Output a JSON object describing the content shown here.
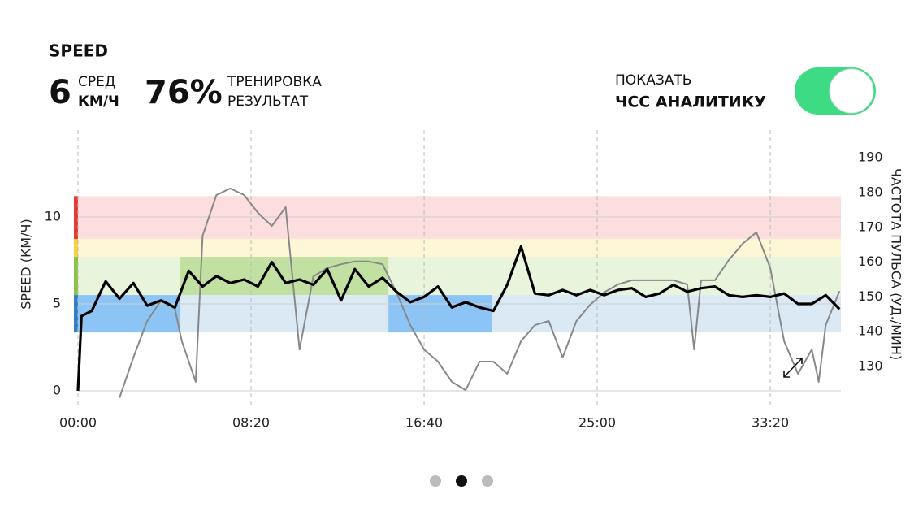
{
  "header": {
    "metric": "SPEED",
    "avg_value": "6",
    "avg_label": "СРЕД",
    "avg_unit": "КМ/Ч",
    "score_value": "76%",
    "score_label_1": "ТРЕНИРОВКА",
    "score_label_2": "РЕЗУЛЬТАТ",
    "toggle_label_1": "ПОКАЗАТЬ",
    "toggle_label_2": "ЧСС АНАЛИТИКУ"
  },
  "chart_data": {
    "type": "line",
    "y_label": "SPEED (КМ/Ч)",
    "y2_label": "ЧАСТОТА ПУЛЬСА (УД./МИН)",
    "xlim": [
      0,
      2204
    ],
    "xticks": [
      {
        "value": 0,
        "label": "00:00"
      },
      {
        "value": 500,
        "label": "08:20"
      },
      {
        "value": 1000,
        "label": "16:40"
      },
      {
        "value": 1500,
        "label": "25:00"
      },
      {
        "value": 2000,
        "label": "33:20"
      }
    ],
    "ylim": [
      0,
      15
    ],
    "yticks": [
      0,
      5,
      10
    ],
    "y2lim": [
      123,
      198
    ],
    "y2ticks": [
      130,
      140,
      150,
      160,
      170,
      180,
      190
    ],
    "zones": [
      {
        "from": 8.74,
        "to": 11.2,
        "color": "#fddede",
        "strip": "#e53935"
      },
      {
        "from": 7.71,
        "to": 8.74,
        "color": "#fdf7d8",
        "strip": "#f5d33a"
      },
      {
        "from": 5.51,
        "to": 7.71,
        "color": "#e9f4dd",
        "strip": "#8bc34a"
      },
      {
        "from": 3.36,
        "to": 5.51,
        "color": "#dbe9f5",
        "strip": "#2f80c8"
      }
    ],
    "highlights": [
      {
        "zone": 3,
        "start": 0,
        "end": 296,
        "color": "#8cc4f5"
      },
      {
        "zone": 2,
        "start": 296,
        "end": 897,
        "color": "#c2e0a2"
      },
      {
        "zone": 3,
        "start": 897,
        "end": 1195,
        "color": "#8cc4f5"
      }
    ],
    "speed": {
      "color": "#000000",
      "x": [
        0,
        10,
        40,
        80,
        120,
        160,
        200,
        240,
        280,
        320,
        360,
        400,
        440,
        480,
        520,
        560,
        600,
        640,
        680,
        720,
        760,
        800,
        840,
        880,
        920,
        960,
        1000,
        1040,
        1080,
        1120,
        1160,
        1200,
        1240,
        1280,
        1320,
        1360,
        1400,
        1440,
        1480,
        1520,
        1560,
        1600,
        1640,
        1680,
        1720,
        1760,
        1800,
        1840,
        1880,
        1920,
        1960,
        2000,
        2040,
        2080,
        2120,
        2160,
        2200
      ],
      "values": [
        0,
        4.3,
        4.6,
        6.3,
        5.3,
        6.2,
        4.9,
        5.2,
        4.8,
        6.9,
        6.0,
        6.6,
        6.2,
        6.4,
        6.0,
        7.4,
        6.2,
        6.4,
        6.1,
        7.0,
        5.2,
        7.0,
        6.0,
        6.5,
        5.7,
        5.1,
        5.4,
        6.0,
        4.8,
        5.1,
        4.8,
        4.6,
        6.1,
        8.3,
        5.6,
        5.5,
        5.8,
        5.5,
        5.8,
        5.5,
        5.8,
        5.9,
        5.4,
        5.6,
        6.1,
        5.7,
        5.9,
        6.0,
        5.5,
        5.4,
        5.5,
        5.4,
        5.6,
        5.0,
        5.0,
        5.5,
        4.7
      ]
    },
    "heart_rate": {
      "axis": "y2",
      "color": "#888888",
      "x": [
        120,
        160,
        200,
        240,
        280,
        300,
        340,
        360,
        400,
        440,
        480,
        520,
        560,
        600,
        640,
        680,
        720,
        760,
        800,
        840,
        880,
        920,
        960,
        1000,
        1040,
        1080,
        1120,
        1160,
        1200,
        1240,
        1280,
        1320,
        1360,
        1400,
        1440,
        1480,
        1520,
        1560,
        1600,
        1640,
        1680,
        1720,
        1760,
        1780,
        1800,
        1840,
        1880,
        1920,
        1960,
        2000,
        2040,
        2080,
        2120,
        2140,
        2160,
        2200
      ],
      "values": [
        121,
        132.6,
        143.1,
        149,
        146.6,
        137.3,
        125.6,
        167.6,
        179.3,
        181.2,
        179.3,
        174.2,
        170.4,
        175.8,
        134.9,
        155.9,
        158.3,
        159.4,
        160.2,
        160.2,
        159.4,
        151.3,
        141.9,
        134.9,
        131.4,
        125.6,
        123.2,
        131.4,
        131.4,
        127.9,
        137.3,
        141.9,
        143.1,
        132.6,
        143.1,
        147.8,
        151.3,
        153.6,
        154.8,
        154.8,
        154.8,
        154.8,
        153.6,
        134.9,
        154.8,
        154.8,
        160.6,
        165.3,
        168.6,
        158.3,
        137.3,
        127.9,
        134.9,
        125.6,
        141.9,
        151.7
      ]
    }
  }
}
